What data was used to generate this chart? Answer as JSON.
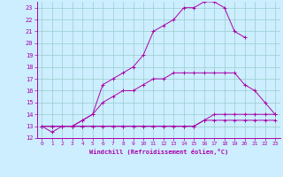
{
  "xlabel": "Windchill (Refroidissement éolien,°C)",
  "bg_color": "#cceeff",
  "line_color": "#aa00aa",
  "grid_color": "#99cccc",
  "xlim": [
    -0.5,
    23.5
  ],
  "ylim": [
    12,
    23.5
  ],
  "xticks": [
    0,
    1,
    2,
    3,
    4,
    5,
    6,
    7,
    8,
    9,
    10,
    11,
    12,
    13,
    14,
    15,
    16,
    17,
    18,
    19,
    20,
    21,
    22,
    23
  ],
  "yticks": [
    12,
    13,
    14,
    15,
    16,
    17,
    18,
    19,
    20,
    21,
    22,
    23
  ],
  "line1_x": [
    0,
    1,
    2,
    3,
    4,
    5,
    6,
    7,
    8,
    9,
    10,
    11,
    12,
    13,
    14,
    15,
    16,
    17,
    18,
    19,
    20,
    21,
    22,
    23
  ],
  "line1_y": [
    13,
    12.5,
    13,
    13,
    13,
    13,
    13,
    13,
    13,
    13,
    13,
    13,
    13,
    13,
    13,
    13.0,
    13.5,
    13.5,
    13.5,
    13.5,
    13.5,
    13.5,
    13.5,
    13.5
  ],
  "line2_x": [
    0,
    1,
    2,
    3,
    4,
    5,
    6,
    7,
    8,
    9,
    10,
    11,
    12,
    13,
    14,
    15,
    16,
    17,
    18,
    19,
    20,
    21,
    22,
    23
  ],
  "line2_y": [
    13,
    13,
    13,
    13,
    13,
    13,
    13,
    13,
    13,
    13,
    13,
    13,
    13,
    13,
    13,
    13,
    13.5,
    14,
    14,
    14,
    14,
    14,
    14,
    14
  ],
  "line3_x": [
    0,
    1,
    2,
    3,
    4,
    5,
    6,
    7,
    8,
    9,
    10,
    11,
    12,
    13,
    14,
    15,
    16,
    17,
    18,
    19,
    20,
    21,
    22,
    23
  ],
  "line3_y": [
    13,
    13,
    13,
    13,
    13.5,
    14,
    15,
    15.5,
    16,
    16,
    16.5,
    17,
    17,
    17.5,
    17.5,
    17.5,
    17.5,
    17.5,
    17.5,
    17.5,
    16.5,
    16,
    15,
    14
  ],
  "line4_x": [
    0,
    1,
    2,
    3,
    4,
    5,
    6,
    7,
    8,
    9,
    10,
    11,
    12,
    13,
    14,
    15,
    16,
    17,
    18,
    19,
    20,
    21,
    22,
    23
  ],
  "line4_y": [
    13,
    13,
    13,
    13,
    13.5,
    14,
    16.5,
    17,
    17.5,
    18,
    19,
    21,
    21.5,
    22,
    23,
    23,
    23.5,
    23.5,
    23,
    21,
    20.5,
    null,
    null,
    null
  ]
}
